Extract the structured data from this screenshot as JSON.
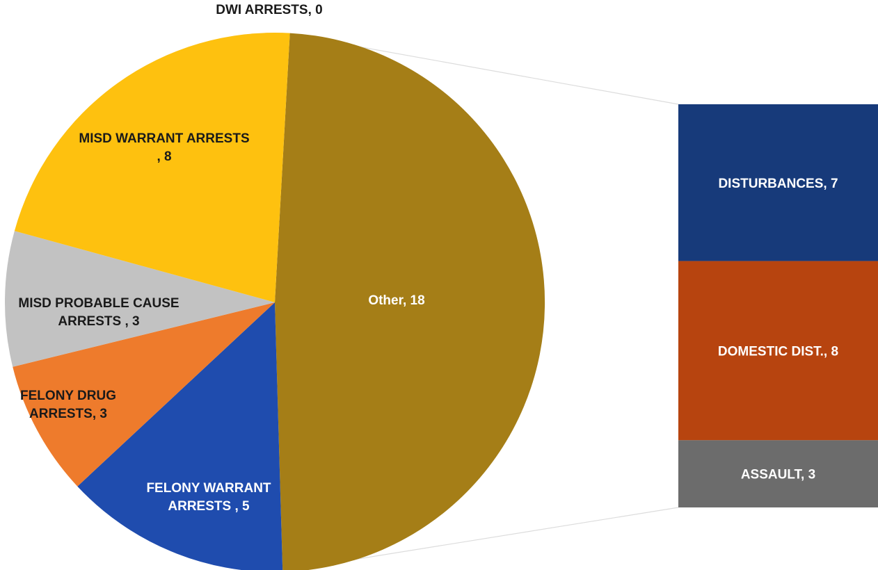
{
  "chart_data": {
    "type": "pie",
    "subtype": "bar-of-pie",
    "pie": {
      "slices": [
        {
          "label": "Other",
          "value": 18,
          "color": "#a57e17",
          "label_lines": [
            "Other, 18"
          ]
        },
        {
          "label": "FELONY WARRANT ARRESTS",
          "value": 5,
          "color": "#1f4cae",
          "label_lines": [
            "FELONY WARRANT",
            "ARRESTS , 5"
          ]
        },
        {
          "label": "FELONY DRUG ARRESTS",
          "value": 3,
          "color": "#ee7b2c",
          "label_lines": [
            "FELONY DRUG",
            "ARRESTS, 3"
          ]
        },
        {
          "label": "MISD PROBABLE CAUSE ARRESTS",
          "value": 3,
          "color": "#c2c2c2",
          "label_lines": [
            "MISD PROBABLE CAUSE",
            "ARRESTS , 3"
          ]
        },
        {
          "label": "MISD WARRANT ARRESTS",
          "value": 8,
          "color": "#fec10f",
          "label_lines": [
            "MISD WARRANT ARRESTS",
            ", 8"
          ]
        },
        {
          "label": "DWI ARRESTS",
          "value": 0,
          "color": "#4472c4",
          "label_lines": [
            "DWI ARRESTS, 0"
          ]
        }
      ]
    },
    "bar": {
      "segments": [
        {
          "label": "DISTURBANCES",
          "value": 7,
          "color": "#173a7a",
          "label_lines": [
            "DISTURBANCES, 7"
          ]
        },
        {
          "label": "DOMESTIC DIST.",
          "value": 8,
          "color": "#b7440f",
          "label_lines": [
            "DOMESTIC DIST., 8"
          ]
        },
        {
          "label": "ASSAULT",
          "value": 3,
          "color": "#6c6c6c",
          "label_lines": [
            "ASSAULT, 3"
          ]
        }
      ]
    }
  }
}
